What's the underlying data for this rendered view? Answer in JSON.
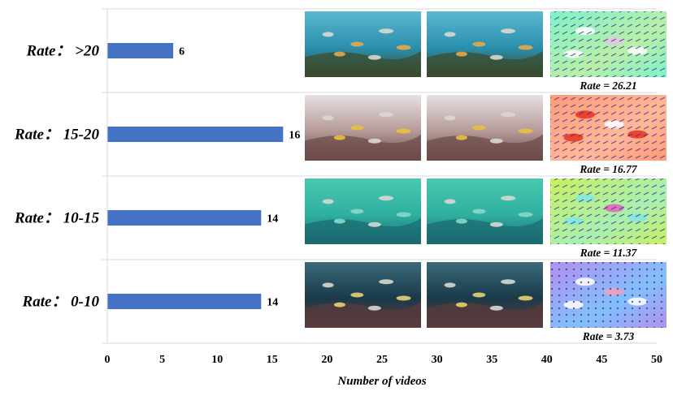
{
  "chart_data": {
    "type": "bar",
    "orientation": "horizontal",
    "categories": [
      "Rate： >20",
      "Rate： 15-20",
      "Rate： 10-15",
      "Rate： 0-10"
    ],
    "values": [
      6,
      16,
      14,
      14
    ],
    "value_labels": [
      "6",
      "16",
      "14",
      "14"
    ],
    "xlabel": "Number  of  videos",
    "ylabel": "",
    "xlim": [
      0,
      50
    ],
    "xticks": [
      0,
      5,
      10,
      15,
      20,
      25,
      30,
      35,
      40,
      45,
      50
    ],
    "grid": "horizontal separators between categories",
    "bar_color": "#4472c4",
    "rows": [
      {
        "caption": "Rate = 26.21",
        "frame_palette": [
          "#2a8fae",
          "#5cb8d0",
          "#3a4a2c",
          "#e8a64a"
        ],
        "flow_palette": [
          "#7ef2c8",
          "#b8f0a8",
          "#e8c4e8",
          "#ffffff"
        ],
        "frame_icon": "underwater-reef-fish-frame",
        "flow_icon": "optical-flow-map"
      },
      {
        "caption": "Rate = 16.77",
        "frame_palette": [
          "#b59a98",
          "#e8e0e2",
          "#6a4a48",
          "#e8c040"
        ],
        "flow_palette": [
          "#ff9a7a",
          "#ffb898",
          "#ffffff",
          "#e83020"
        ],
        "frame_icon": "shallow-water-fish-school-frame",
        "flow_icon": "optical-flow-map"
      },
      {
        "caption": "Rate = 11.37",
        "frame_palette": [
          "#2fb0a0",
          "#4ac8b0",
          "#1a6a70",
          "#8ad8c8"
        ],
        "flow_palette": [
          "#c8f060",
          "#a8f0b0",
          "#e060c0",
          "#80e8e0"
        ],
        "frame_icon": "sandy-bottom-fish-frame",
        "flow_icon": "optical-flow-map"
      },
      {
        "caption": "Rate = 3.73",
        "frame_palette": [
          "#1a3a4a",
          "#3a6a7a",
          "#5a3a3a",
          "#e8d070"
        ],
        "flow_palette": [
          "#b090f0",
          "#80c0ff",
          "#f0a0c0",
          "#ffffff"
        ],
        "frame_icon": "coral-cave-fish-frame",
        "flow_icon": "optical-flow-map"
      }
    ]
  }
}
